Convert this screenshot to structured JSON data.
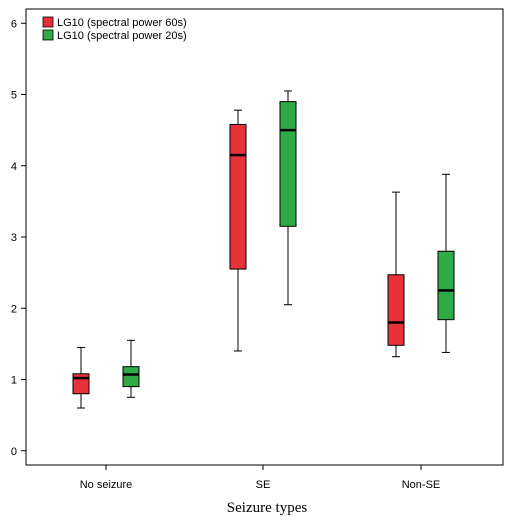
{
  "chart_data": {
    "type": "boxplot",
    "title": "",
    "xlabel": "Seizure types",
    "ylabel": "",
    "ylim": [
      -0.2,
      6.2
    ],
    "yticks": [
      0,
      1,
      2,
      3,
      4,
      5,
      6
    ],
    "categories": [
      "No seizure",
      "SE",
      "Non-SE"
    ],
    "legend_position": "top-left",
    "grid": false,
    "series": [
      {
        "name": "LG10 (spectral power 60s)",
        "color": "#e8323a",
        "boxes": [
          {
            "min": 0.6,
            "q1": 0.8,
            "median": 1.02,
            "q3": 1.08,
            "max": 1.45
          },
          {
            "min": 1.4,
            "q1": 2.55,
            "median": 4.15,
            "q3": 4.58,
            "max": 4.78
          },
          {
            "min": 1.32,
            "q1": 1.48,
            "median": 1.8,
            "q3": 2.47,
            "max": 3.63
          }
        ]
      },
      {
        "name": "LG10 (spectral power 20s)",
        "color": "#2faa46",
        "boxes": [
          {
            "min": 0.75,
            "q1": 0.9,
            "median": 1.07,
            "q3": 1.18,
            "max": 1.55
          },
          {
            "min": 2.05,
            "q1": 3.15,
            "median": 4.5,
            "q3": 4.9,
            "max": 5.05
          },
          {
            "min": 1.38,
            "q1": 1.84,
            "median": 2.25,
            "q3": 2.8,
            "max": 3.88
          }
        ]
      }
    ]
  }
}
